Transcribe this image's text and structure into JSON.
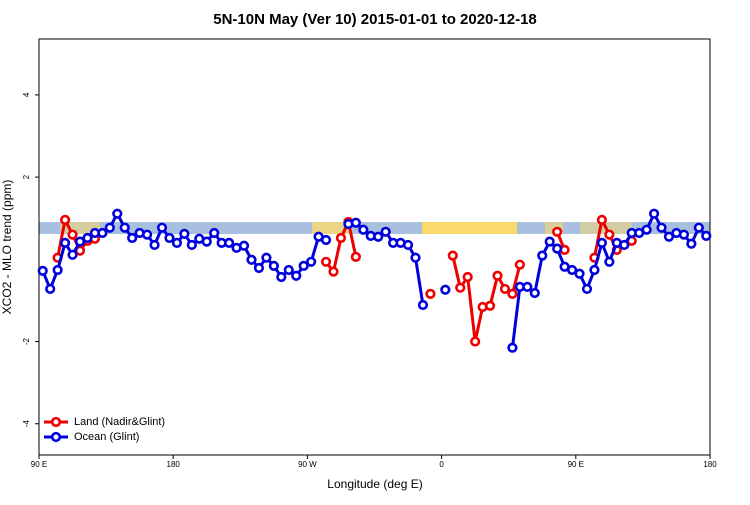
{
  "chart_data": {
    "type": "line",
    "title": "5N-10N May (Ver 10)   2015-01-01 to 2020-12-18",
    "x_label": "Longitude (deg E)",
    "y_label": "XCO2 - MLO trend (ppm)",
    "x": [
      92.5,
      97.5,
      102.5,
      107.5,
      112.5,
      117.5,
      122.5,
      127.5,
      132.5,
      137.5,
      142.5,
      147.5,
      152.5,
      157.5,
      162.5,
      167.5,
      172.5,
      177.5,
      182.5,
      187.5,
      192.5,
      197.5,
      202.5,
      207.5,
      212.5,
      217.5,
      222.5,
      227.5,
      232.5,
      237.5,
      242.5,
      247.5,
      252.5,
      257.5,
      262.5,
      267.5,
      272.5,
      277.5,
      282.5,
      287.5,
      292.5,
      297.5,
      302.5,
      307.5,
      312.5,
      317.5,
      322.5,
      327.5,
      332.5,
      337.5,
      342.5,
      347.5,
      352.5,
      357.5,
      362.5,
      367.5,
      372.5,
      377.5,
      382.5,
      387.5,
      392.5,
      397.5,
      402.5,
      407.5,
      412.5,
      417.5,
      422.5,
      427.5,
      432.5,
      437.5,
      442.5,
      447.5,
      452.5,
      457.5,
      462.5,
      467.5,
      472.5,
      477.5,
      482.5,
      487.5,
      492.5,
      497.5,
      502.5,
      507.5,
      512.5,
      517.5,
      522.5,
      527.5,
      532.5,
      537.5
    ],
    "series": [
      {
        "name": "Land (Nadir&Glint)",
        "color": "#ee0000",
        "values": [
          null,
          null,
          0.04,
          0.96,
          0.6,
          0.21,
          0.45,
          0.5,
          null,
          null,
          null,
          null,
          null,
          null,
          null,
          null,
          null,
          null,
          null,
          null,
          null,
          null,
          null,
          null,
          null,
          null,
          null,
          null,
          null,
          null,
          null,
          null,
          null,
          null,
          null,
          null,
          null,
          null,
          -0.06,
          -0.3,
          0.52,
          0.91,
          0.06,
          null,
          null,
          null,
          null,
          null,
          null,
          null,
          null,
          null,
          -0.84,
          null,
          null,
          0.09,
          -0.69,
          -0.43,
          -2.0,
          -1.16,
          -1.13,
          -0.4,
          -0.72,
          -0.84,
          -0.13,
          null,
          null,
          null,
          null,
          0.67,
          0.23,
          null,
          null,
          null,
          0.04,
          0.96,
          0.6,
          0.23,
          null,
          0.45,
          null,
          null,
          null,
          null,
          null,
          null,
          null,
          null,
          null,
          null
        ]
      },
      {
        "name": "Ocean (Glint)",
        "color": "#0000dd",
        "values": [
          -0.28,
          -0.72,
          -0.26,
          0.4,
          0.11,
          0.43,
          0.52,
          0.64,
          0.64,
          0.77,
          1.11,
          0.77,
          0.52,
          0.64,
          0.6,
          0.35,
          0.77,
          0.52,
          0.4,
          0.62,
          0.35,
          0.5,
          0.43,
          0.64,
          0.4,
          0.4,
          0.28,
          0.33,
          -0.01,
          -0.21,
          0.04,
          -0.16,
          -0.43,
          -0.26,
          -0.4,
          -0.16,
          -0.06,
          0.55,
          0.47,
          null,
          null,
          0.86,
          0.89,
          0.72,
          0.57,
          0.55,
          0.67,
          0.4,
          0.4,
          0.35,
          0.04,
          -1.11,
          null,
          null,
          -0.74,
          null,
          null,
          null,
          null,
          null,
          null,
          null,
          null,
          -2.15,
          -0.67,
          -0.67,
          -0.82,
          0.09,
          0.43,
          0.26,
          -0.18,
          -0.26,
          -0.35,
          -0.72,
          -0.26,
          0.4,
          -0.06,
          0.4,
          0.35,
          0.64,
          0.64,
          0.72,
          1.11,
          0.77,
          0.55,
          0.64,
          0.6,
          0.38,
          0.77,
          0.57
        ]
      }
    ],
    "xlim": [
      90,
      540
    ],
    "xticks": [
      {
        "value": 90,
        "label": "90 E"
      },
      {
        "value": 180,
        "label": "180"
      },
      {
        "value": 270,
        "label": "90 W"
      },
      {
        "value": 360,
        "label": "0"
      },
      {
        "value": 450,
        "label": "90 E"
      },
      {
        "value": 540,
        "label": "180"
      }
    ],
    "ylim": [
      -4.76,
      5.36
    ],
    "yticks": [
      -4,
      -2,
      2,
      4
    ],
    "legend": "bottom-left"
  }
}
